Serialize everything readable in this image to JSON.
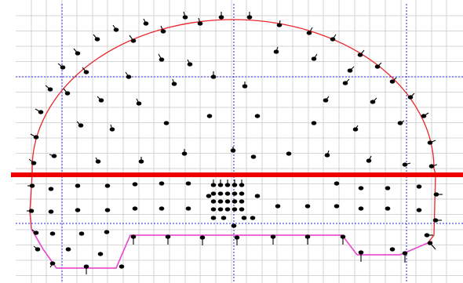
{
  "diagram": {
    "colors": {
      "background": "#ffffff",
      "minor_grid": "#c8c8c8",
      "major_grid": "#2b2bd6",
      "arch_outline": "#e8262b",
      "bench_outline": "#e84ad8",
      "divider_line": "#ee0000",
      "hole": "#000000"
    },
    "elements": {
      "minor_grid": "minor-grid-lines",
      "major_grid": "major-grid-lines",
      "arch": "tunnel-arch-outline",
      "bench": "bench-bottom-outline",
      "divider": "heading-bench-divider-line",
      "holes": "blast-holes"
    }
  }
}
